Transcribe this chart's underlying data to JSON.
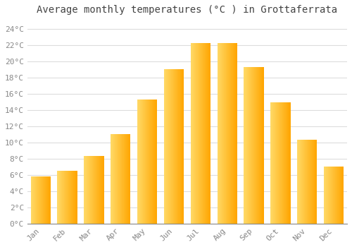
{
  "title": "Average monthly temperatures (°C ) in Grottaferrata",
  "months": [
    "Jan",
    "Feb",
    "Mar",
    "Apr",
    "May",
    "Jun",
    "Jul",
    "Aug",
    "Sep",
    "Oct",
    "Nov",
    "Dec"
  ],
  "values": [
    5.8,
    6.5,
    8.3,
    11.0,
    15.3,
    19.0,
    22.2,
    22.2,
    19.3,
    14.9,
    10.3,
    7.0
  ],
  "bar_color_left": "#FFD966",
  "bar_color_right": "#FFA500",
  "ylim": [
    0,
    25
  ],
  "yticks": [
    0,
    2,
    4,
    6,
    8,
    10,
    12,
    14,
    16,
    18,
    20,
    22,
    24
  ],
  "ytick_labels": [
    "0°C",
    "2°C",
    "4°C",
    "6°C",
    "8°C",
    "10°C",
    "12°C",
    "14°C",
    "16°C",
    "18°C",
    "20°C",
    "22°C",
    "24°C"
  ],
  "background_color": "#ffffff",
  "grid_color": "#dddddd",
  "title_fontsize": 10,
  "tick_fontsize": 8,
  "font_family": "monospace",
  "bar_width": 0.75
}
